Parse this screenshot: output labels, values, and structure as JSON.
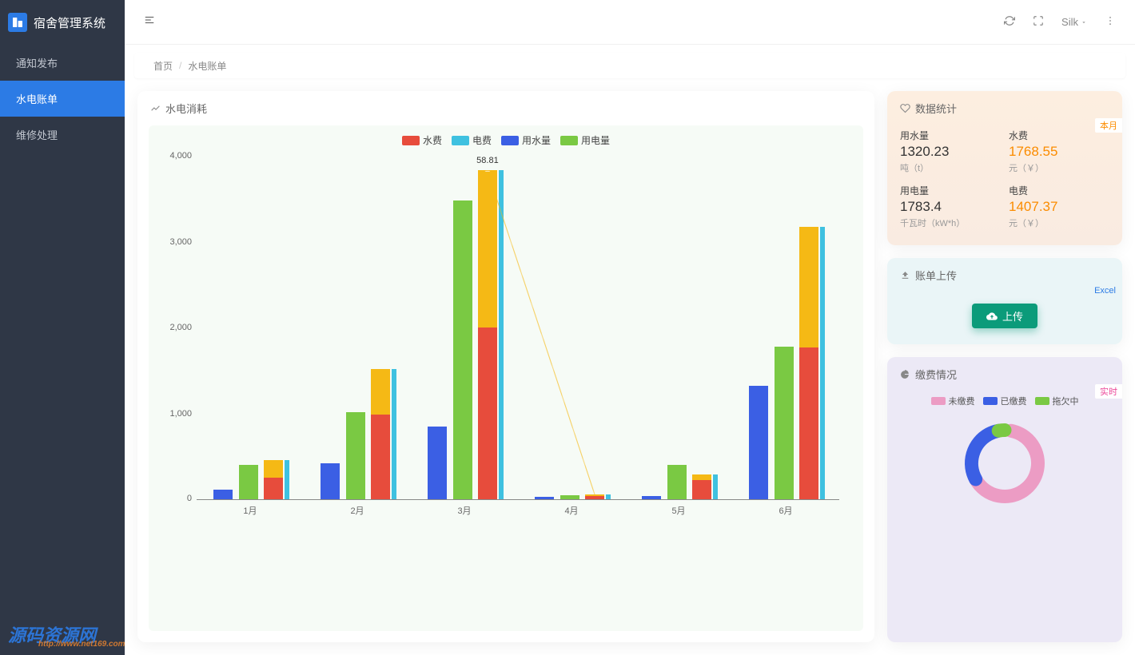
{
  "sidebar": {
    "title": "宿舍管理系统",
    "items": [
      {
        "label": "通知发布",
        "active": false
      },
      {
        "label": "水电账单",
        "active": true
      },
      {
        "label": "维修处理",
        "active": false
      }
    ]
  },
  "topbar": {
    "user": "Silk"
  },
  "breadcrumb": {
    "home": "首页",
    "current": "水电账单"
  },
  "chart": {
    "title": "水电消耗",
    "type": "bar+line",
    "legend": [
      {
        "label": "水费",
        "color": "#e74c3c",
        "shape": "rect"
      },
      {
        "label": "电费",
        "color": "#3fc1e0",
        "shape": "rect"
      },
      {
        "label": "用水量",
        "color": "#3b5fe4",
        "shape": "rect"
      },
      {
        "label": "用电量",
        "color": "#7ac943",
        "shape": "rect"
      }
    ],
    "y_max": 4000,
    "y_ticks": [
      0,
      1000,
      2000,
      3000,
      4000
    ],
    "categories": [
      "1月",
      "2月",
      "3月",
      "4月",
      "5月",
      "6月"
    ],
    "series": {
      "用水量": {
        "color": "#3b5fe4",
        "values": [
          110,
          420,
          850,
          25,
          40,
          1320
        ]
      },
      "用电量": {
        "color": "#7ac943",
        "values": [
          400,
          1010,
          3480,
          45,
          400,
          1780
        ]
      },
      "水费电费_yellow": {
        "color": "#f5b915",
        "values": [
          460,
          1520,
          3830,
          60,
          290,
          3170
        ]
      },
      "水费_red": {
        "color": "#e74c3c",
        "values": [
          250,
          990,
          2000,
          40,
          220,
          1770
        ]
      },
      "电费_cyan": {
        "color": "#3fc1e0",
        "values": [
          460,
          1520,
          3830,
          60,
          290,
          3170
        ]
      }
    },
    "line": {
      "color": "#f5b915",
      "dashed": true,
      "points": [
        40,
        40,
        58.81,
        40,
        40,
        40
      ],
      "visible_peak_idx": 2
    },
    "annotation": {
      "text": "58.81",
      "month_idx": 2
    },
    "background": "#f6fbf6"
  },
  "stats": {
    "title": "数据统计",
    "tag": "本月",
    "items": [
      {
        "label": "用水量",
        "value": "1320.23",
        "unit": "吨（t）",
        "orange": false
      },
      {
        "label": "水费",
        "value": "1768.55",
        "unit": "元（￥）",
        "orange": true
      },
      {
        "label": "用电量",
        "value": "1783.4",
        "unit": "千瓦时（kW*h）",
        "orange": false
      },
      {
        "label": "电费",
        "value": "1407.37",
        "unit": "元（￥）",
        "orange": true
      }
    ]
  },
  "upload": {
    "title": "账单上传",
    "tag": "Excel",
    "button": "上传"
  },
  "payment": {
    "title": "缴费情况",
    "tag": "实时",
    "legend": [
      {
        "label": "未缴费",
        "color": "#ec9cc4"
      },
      {
        "label": "已缴费",
        "color": "#3b5fe4"
      },
      {
        "label": "拖欠中",
        "color": "#7ac943"
      }
    ],
    "donut": {
      "segments": [
        {
          "color": "#ec9cc4",
          "fraction": 0.64,
          "start": 0.03
        },
        {
          "color": "#3b5fe4",
          "fraction": 0.3,
          "start": 0.67
        },
        {
          "color": "#7ac943",
          "fraction": 0.03,
          "start": 0.97
        }
      ],
      "radius": 50,
      "stroke": 17
    }
  },
  "watermark": {
    "main": "源码资源网",
    "sub": "http://www.net169.com"
  }
}
